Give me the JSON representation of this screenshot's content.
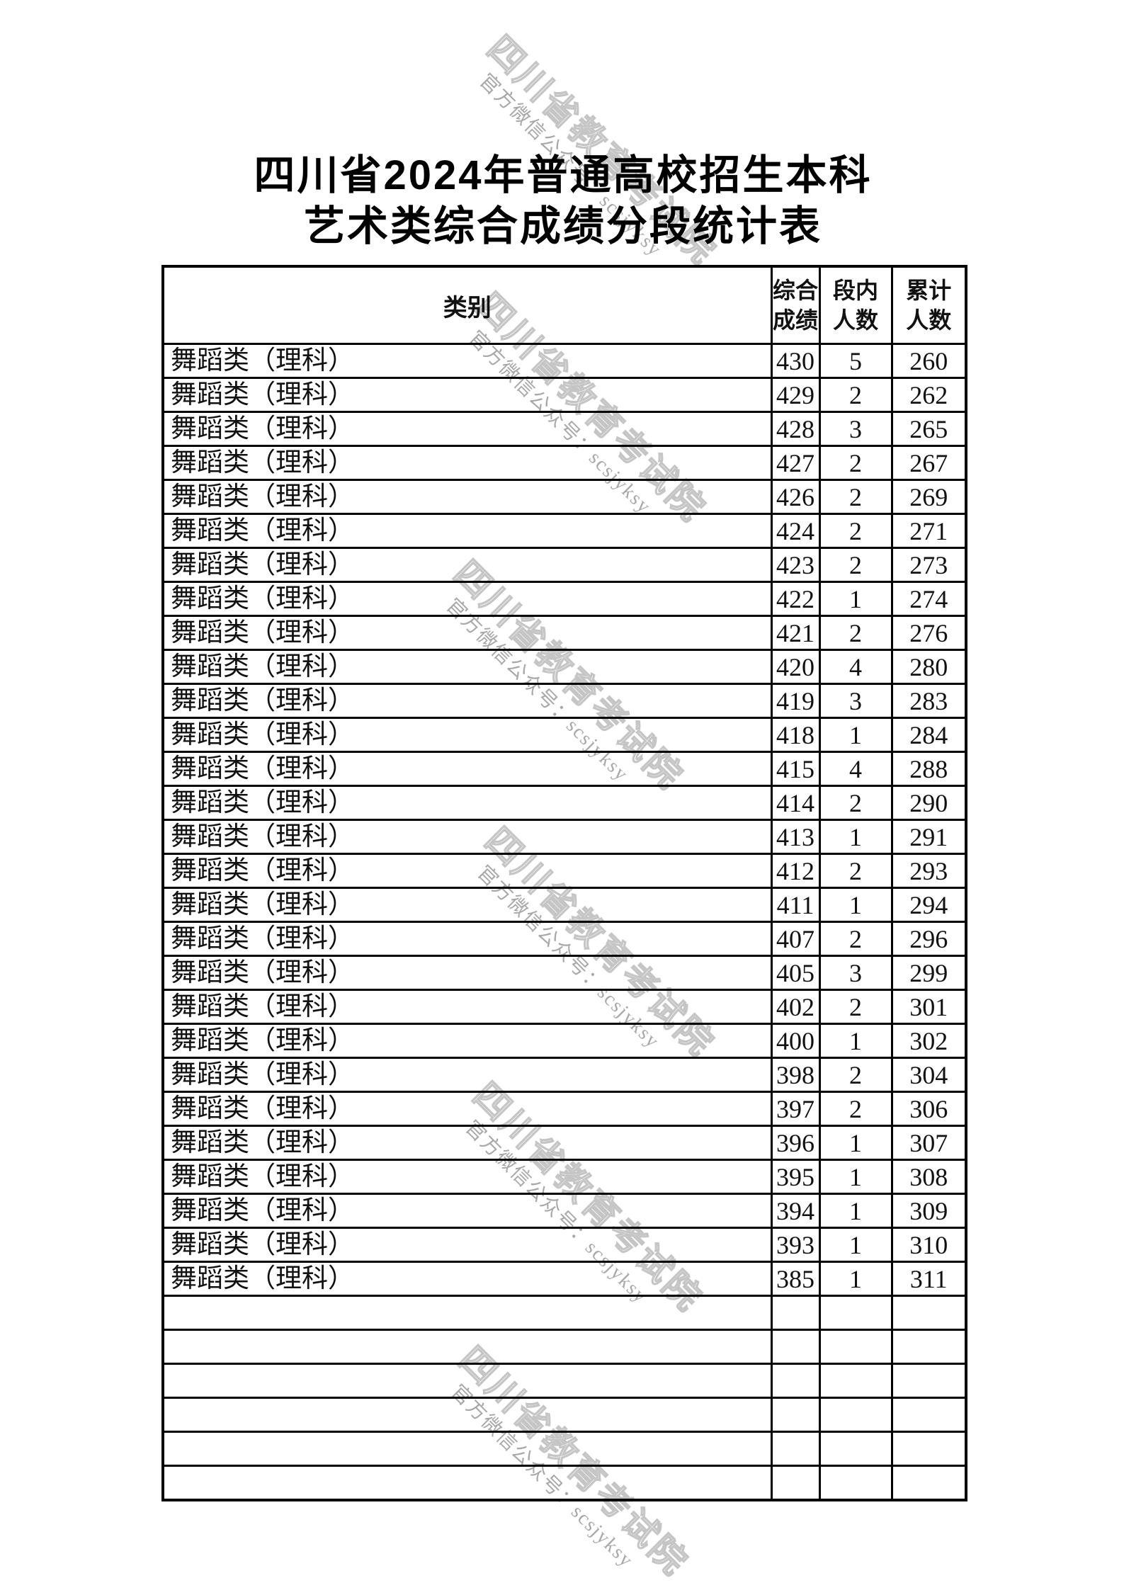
{
  "document": {
    "title_line1": "四川省2024年普通高校招生本科",
    "title_line2": "艺术类综合成绩分段统计表"
  },
  "watermark": {
    "org": "四川省教育考试院",
    "wechat": "官方微信公众号：scsjyksy"
  },
  "table": {
    "headers": {
      "category": "类别",
      "score": "综合成绩",
      "segment": "段内人数",
      "cumulative": "累计人数"
    },
    "rows": [
      {
        "category": "舞蹈类（理科）",
        "score": 430,
        "segment": 5,
        "cumulative": 260
      },
      {
        "category": "舞蹈类（理科）",
        "score": 429,
        "segment": 2,
        "cumulative": 262
      },
      {
        "category": "舞蹈类（理科）",
        "score": 428,
        "segment": 3,
        "cumulative": 265
      },
      {
        "category": "舞蹈类（理科）",
        "score": 427,
        "segment": 2,
        "cumulative": 267
      },
      {
        "category": "舞蹈类（理科）",
        "score": 426,
        "segment": 2,
        "cumulative": 269
      },
      {
        "category": "舞蹈类（理科）",
        "score": 424,
        "segment": 2,
        "cumulative": 271
      },
      {
        "category": "舞蹈类（理科）",
        "score": 423,
        "segment": 2,
        "cumulative": 273
      },
      {
        "category": "舞蹈类（理科）",
        "score": 422,
        "segment": 1,
        "cumulative": 274
      },
      {
        "category": "舞蹈类（理科）",
        "score": 421,
        "segment": 2,
        "cumulative": 276
      },
      {
        "category": "舞蹈类（理科）",
        "score": 420,
        "segment": 4,
        "cumulative": 280
      },
      {
        "category": "舞蹈类（理科）",
        "score": 419,
        "segment": 3,
        "cumulative": 283
      },
      {
        "category": "舞蹈类（理科）",
        "score": 418,
        "segment": 1,
        "cumulative": 284
      },
      {
        "category": "舞蹈类（理科）",
        "score": 415,
        "segment": 4,
        "cumulative": 288
      },
      {
        "category": "舞蹈类（理科）",
        "score": 414,
        "segment": 2,
        "cumulative": 290
      },
      {
        "category": "舞蹈类（理科）",
        "score": 413,
        "segment": 1,
        "cumulative": 291
      },
      {
        "category": "舞蹈类（理科）",
        "score": 412,
        "segment": 2,
        "cumulative": 293
      },
      {
        "category": "舞蹈类（理科）",
        "score": 411,
        "segment": 1,
        "cumulative": 294
      },
      {
        "category": "舞蹈类（理科）",
        "score": 407,
        "segment": 2,
        "cumulative": 296
      },
      {
        "category": "舞蹈类（理科）",
        "score": 405,
        "segment": 3,
        "cumulative": 299
      },
      {
        "category": "舞蹈类（理科）",
        "score": 402,
        "segment": 2,
        "cumulative": 301
      },
      {
        "category": "舞蹈类（理科）",
        "score": 400,
        "segment": 1,
        "cumulative": 302
      },
      {
        "category": "舞蹈类（理科）",
        "score": 398,
        "segment": 2,
        "cumulative": 304
      },
      {
        "category": "舞蹈类（理科）",
        "score": 397,
        "segment": 2,
        "cumulative": 306
      },
      {
        "category": "舞蹈类（理科）",
        "score": 396,
        "segment": 1,
        "cumulative": 307
      },
      {
        "category": "舞蹈类（理科）",
        "score": 395,
        "segment": 1,
        "cumulative": 308
      },
      {
        "category": "舞蹈类（理科）",
        "score": 394,
        "segment": 1,
        "cumulative": 309
      },
      {
        "category": "舞蹈类（理科）",
        "score": 393,
        "segment": 1,
        "cumulative": 310
      },
      {
        "category": "舞蹈类（理科）",
        "score": 385,
        "segment": 1,
        "cumulative": 311
      }
    ],
    "empty_row_count": 6
  }
}
